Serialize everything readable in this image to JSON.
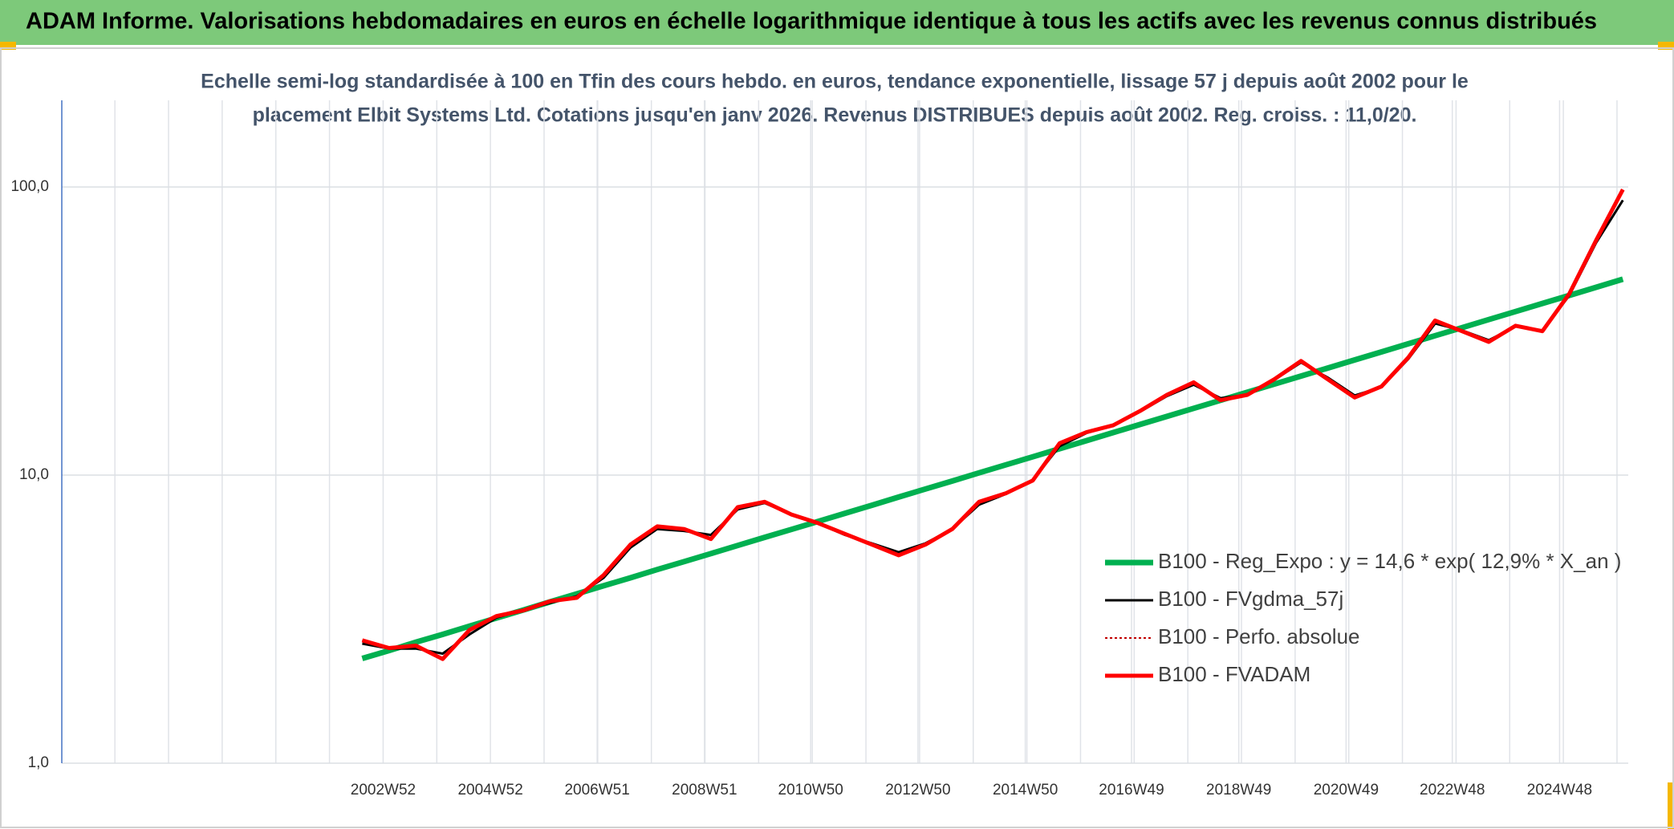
{
  "header": {
    "title": "ADAM Informe. Valorisations hebdomadaires en euros en échelle logarithmique identique à tous les actifs avec les revenus connus distribués"
  },
  "chart_data": {
    "type": "line",
    "title": [
      "Echelle semi-log standardisée à 100 en Tfin des cours hebdo. en euros, tendance exponentielle, lissage 57 j depuis août 2002 pour le",
      "placement Elbit Systems Ltd. Cotations jusqu'en janv 2026. Revenus DISTRIBUES depuis août 2002. Reg. croiss. : 11,0/20."
    ],
    "ylog": true,
    "grid": true,
    "xlim": [
      1997.0,
      2026.2
    ],
    "xticks": [
      {
        "value": 2002.99,
        "label": "2002W52"
      },
      {
        "value": 2004.99,
        "label": "2004W52"
      },
      {
        "value": 2006.98,
        "label": "2006W51"
      },
      {
        "value": 2008.98,
        "label": "2008W51"
      },
      {
        "value": 2010.96,
        "label": "2010W50"
      },
      {
        "value": 2012.96,
        "label": "2012W50"
      },
      {
        "value": 2014.96,
        "label": "2014W50"
      },
      {
        "value": 2016.94,
        "label": "2016W49"
      },
      {
        "value": 2018.94,
        "label": "2018W49"
      },
      {
        "value": 2020.94,
        "label": "2020W49"
      },
      {
        "value": 2022.92,
        "label": "2022W48"
      },
      {
        "value": 2024.92,
        "label": "2024W48"
      }
    ],
    "ylim": [
      1,
      200
    ],
    "yticks": [
      {
        "value": 1,
        "label": "1,0"
      },
      {
        "value": 10,
        "label": "10,0"
      },
      {
        "value": 100,
        "label": "100,0"
      }
    ],
    "x": [
      2002.6,
      2003.1,
      2003.6,
      2004.1,
      2004.6,
      2005.1,
      2005.6,
      2006.1,
      2006.6,
      2007.1,
      2007.6,
      2008.1,
      2008.6,
      2009.1,
      2009.6,
      2010.1,
      2010.6,
      2011.1,
      2011.6,
      2012.1,
      2012.6,
      2013.1,
      2013.6,
      2014.1,
      2014.6,
      2015.1,
      2015.6,
      2016.1,
      2016.6,
      2017.1,
      2017.6,
      2018.1,
      2018.6,
      2019.1,
      2019.6,
      2020.1,
      2020.6,
      2021.1,
      2021.6,
      2022.1,
      2022.6,
      2023.1,
      2023.6,
      2024.1,
      2024.6,
      2025.1,
      2025.6,
      2026.1
    ],
    "series": [
      {
        "name": "B100 - Reg_Expo : y = 14,6 * exp( 12,9% *  X_an )",
        "color": "#00b050",
        "width": 7,
        "style": "solid",
        "values": [
          2.31,
          2.46,
          2.63,
          2.8,
          2.99,
          3.19,
          3.4,
          3.63,
          3.87,
          4.13,
          4.4,
          4.7,
          5.01,
          5.34,
          5.7,
          6.08,
          6.48,
          6.91,
          7.37,
          7.86,
          8.39,
          8.95,
          9.54,
          10.18,
          10.86,
          11.58,
          12.35,
          13.17,
          14.05,
          14.99,
          15.99,
          17.05,
          18.19,
          19.4,
          20.69,
          22.07,
          23.54,
          25.11,
          26.78,
          28.56,
          30.47,
          32.5,
          34.66,
          36.97,
          39.44,
          42.06,
          44.87,
          47.86
        ]
      },
      {
        "name": "B100 - FVgdma_57j",
        "color": "#000000",
        "width": 3,
        "style": "solid",
        "values": [
          2.6,
          2.5,
          2.5,
          2.4,
          2.8,
          3.2,
          3.4,
          3.6,
          3.8,
          4.4,
          5.6,
          6.5,
          6.4,
          6.2,
          7.6,
          8.0,
          7.3,
          6.8,
          6.2,
          5.8,
          5.4,
          5.8,
          6.5,
          7.9,
          8.6,
          9.6,
          12.6,
          14.0,
          14.9,
          16.6,
          18.8,
          20.6,
          18.5,
          19.0,
          21.4,
          24.6,
          21.8,
          18.9,
          20.2,
          25.3,
          33.6,
          31.8,
          29.4,
          32.8,
          31.8,
          42.0,
          64.0,
          90.0
        ]
      },
      {
        "name": "B100 - Perfo. absolue",
        "color": "#c00000",
        "width": 2,
        "style": "dotted",
        "values": [
          2.67,
          2.51,
          2.56,
          2.3,
          2.9,
          3.24,
          3.39,
          3.65,
          3.75,
          4.5,
          5.74,
          6.64,
          6.5,
          6.0,
          7.74,
          8.08,
          7.3,
          6.81,
          6.25,
          5.74,
          5.27,
          5.74,
          6.5,
          8.08,
          8.65,
          9.58,
          12.9,
          14.1,
          14.9,
          16.7,
          19.0,
          21.0,
          18.2,
          19.0,
          21.5,
          24.9,
          21.5,
          18.6,
          20.3,
          25.6,
          34.4,
          31.6,
          29.0,
          33.0,
          31.6,
          42.6,
          65.3,
          98.0
        ]
      },
      {
        "name": "B100 - FVADAM",
        "color": "#ff0000",
        "width": 5,
        "style": "solid",
        "values": [
          2.67,
          2.51,
          2.56,
          2.3,
          2.9,
          3.24,
          3.39,
          3.65,
          3.75,
          4.5,
          5.74,
          6.64,
          6.5,
          6.0,
          7.74,
          8.08,
          7.3,
          6.81,
          6.25,
          5.74,
          5.27,
          5.74,
          6.5,
          8.08,
          8.65,
          9.58,
          12.9,
          14.1,
          14.9,
          16.7,
          19.0,
          21.0,
          18.2,
          19.0,
          21.5,
          24.9,
          21.5,
          18.6,
          20.3,
          25.6,
          34.4,
          31.6,
          29.0,
          33.0,
          31.6,
          42.6,
          65.3,
          98.0
        ]
      }
    ]
  }
}
